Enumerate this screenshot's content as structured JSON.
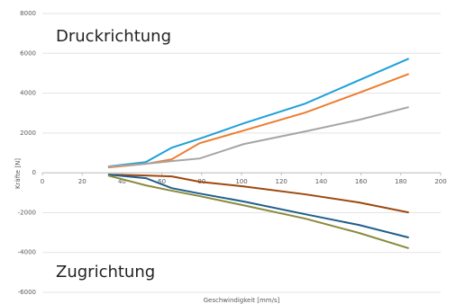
{
  "chart_data": {
    "type": "line",
    "xlabel": "Geschwindigkeit [mm/s]",
    "ylabel": "Kräfte [N]",
    "annotations": [
      "Druckrichtung",
      "Zugrichtung"
    ],
    "x": [
      33,
      52,
      65,
      79,
      101,
      132,
      159,
      184
    ],
    "series": [
      {
        "color": "#1fa0d8",
        "values": [
          316,
          540,
          1264,
          1715,
          2480,
          3476,
          4650,
          5733
        ]
      },
      {
        "color": "#ed7d31",
        "values": [
          270,
          450,
          680,
          1490,
          2120,
          3025,
          4020,
          4966
        ]
      },
      {
        "color": "#a5a5a5",
        "values": [
          316,
          450,
          590,
          720,
          1440,
          2080,
          2660,
          3300
        ]
      },
      {
        "color": "#9e480e",
        "values": [
          -90,
          -135,
          -180,
          -450,
          -680,
          -1080,
          -1490,
          -1990
        ]
      },
      {
        "color": "#1f5f8b",
        "values": [
          -90,
          -270,
          -770,
          -1040,
          -1440,
          -2080,
          -2620,
          -3250
        ]
      },
      {
        "color": "#8a8a3c",
        "values": [
          -135,
          -630,
          -900,
          -1170,
          -1630,
          -2300,
          -3020,
          -3790
        ]
      }
    ],
    "xlim": [
      0,
      200
    ],
    "xticks": [
      0,
      20,
      40,
      60,
      80,
      100,
      120,
      140,
      160,
      180,
      200
    ],
    "ylim": [
      -6000,
      8000
    ],
    "yticks": [
      -6000,
      -4000,
      -2000,
      0,
      2000,
      4000,
      6000,
      8000
    ],
    "grid": true
  }
}
